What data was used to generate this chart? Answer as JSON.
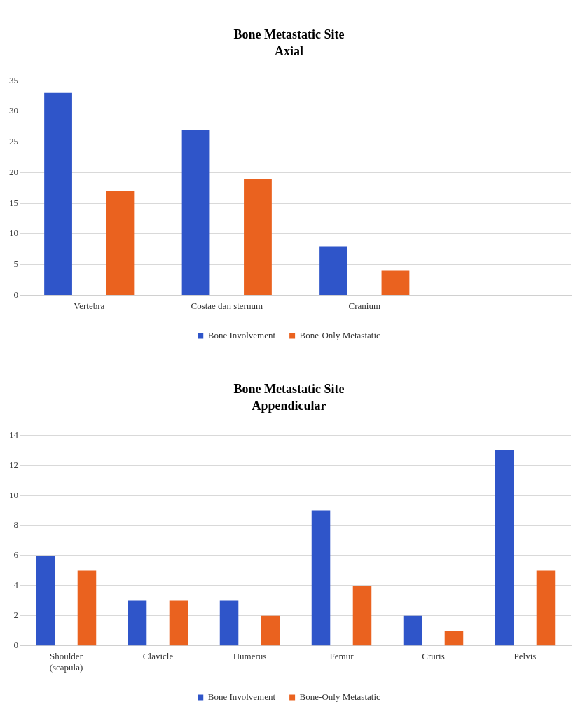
{
  "chart_data": [
    {
      "type": "bar",
      "title": "Bone Metastatic Site",
      "subtitle": "Axial",
      "categories": [
        "Vertebra",
        "Costae dan sternum",
        "Cranium",
        null
      ],
      "series": [
        {
          "name": "Bone Involvement",
          "color": "#2f55c9",
          "values": [
            33,
            27,
            8,
            null
          ]
        },
        {
          "name": "Bone-Only Metastatic",
          "color": "#ea621f",
          "values": [
            17,
            19,
            4,
            null
          ]
        }
      ],
      "ylim": [
        0,
        35
      ],
      "yticks": [
        0,
        5,
        10,
        15,
        20,
        25,
        30,
        35
      ],
      "grid": "y",
      "legend": "bottom"
    },
    {
      "type": "bar",
      "title": "Bone Metastatic Site",
      "subtitle": "Appendicular",
      "categories": [
        "Shoulder (scapula)",
        "Clavicle",
        "Humerus",
        "Femur",
        "Cruris",
        "Pelvis"
      ],
      "series": [
        {
          "name": "Bone Involvement",
          "color": "#2f55c9",
          "values": [
            6,
            3,
            3,
            9,
            2,
            13
          ]
        },
        {
          "name": "Bone-Only Metastatic",
          "color": "#ea621f",
          "values": [
            5,
            3,
            2,
            4,
            1,
            5
          ]
        }
      ],
      "ylim": [
        0,
        14
      ],
      "yticks": [
        0,
        2,
        4,
        6,
        8,
        10,
        12,
        14
      ],
      "grid": "y",
      "legend": "bottom"
    }
  ]
}
